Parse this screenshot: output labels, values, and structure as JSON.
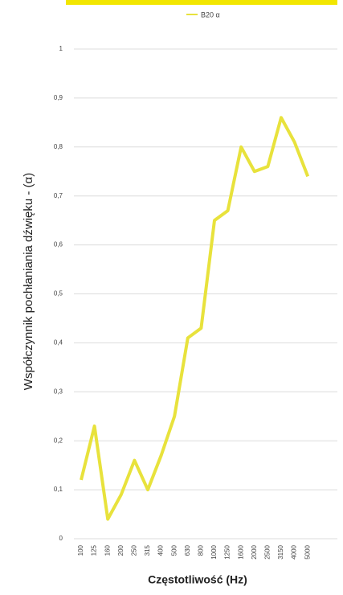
{
  "chart_data": {
    "type": "line",
    "x_label": "Częstotliwość (Hz)",
    "y_label": "Współczynnik pochłaniania dźwięku - (α)",
    "categories": [
      "100",
      "125",
      "160",
      "200",
      "250",
      "315",
      "400",
      "500",
      "630",
      "800",
      "1000",
      "1250",
      "1600",
      "2000",
      "2500",
      "3150",
      "4000",
      "5000"
    ],
    "series": [
      {
        "name": "B20 α",
        "color": "#e8e23c",
        "values": [
          0.12,
          0.23,
          0.04,
          0.09,
          0.16,
          0.1,
          0.17,
          0.25,
          0.41,
          0.43,
          0.65,
          0.67,
          0.8,
          0.75,
          0.76,
          0.86,
          0.81,
          0.74
        ]
      }
    ],
    "ylim": [
      0,
      1
    ],
    "yticks": [
      0,
      {
        "value": 0.1,
        "label": "0,1"
      },
      {
        "value": 0.2,
        "label": "0,2"
      },
      {
        "value": 0.3,
        "label": "0,3"
      },
      {
        "value": 0.4,
        "label": "0,4"
      },
      {
        "value": 0.5,
        "label": "0,5"
      },
      {
        "value": 0.6,
        "label": "0,6"
      },
      {
        "value": 0.7,
        "label": "0,7"
      },
      {
        "value": 0.8,
        "label": "0,8"
      },
      {
        "value": 0.9,
        "label": "0,9"
      },
      1
    ],
    "grid": true,
    "legend": "top"
  }
}
